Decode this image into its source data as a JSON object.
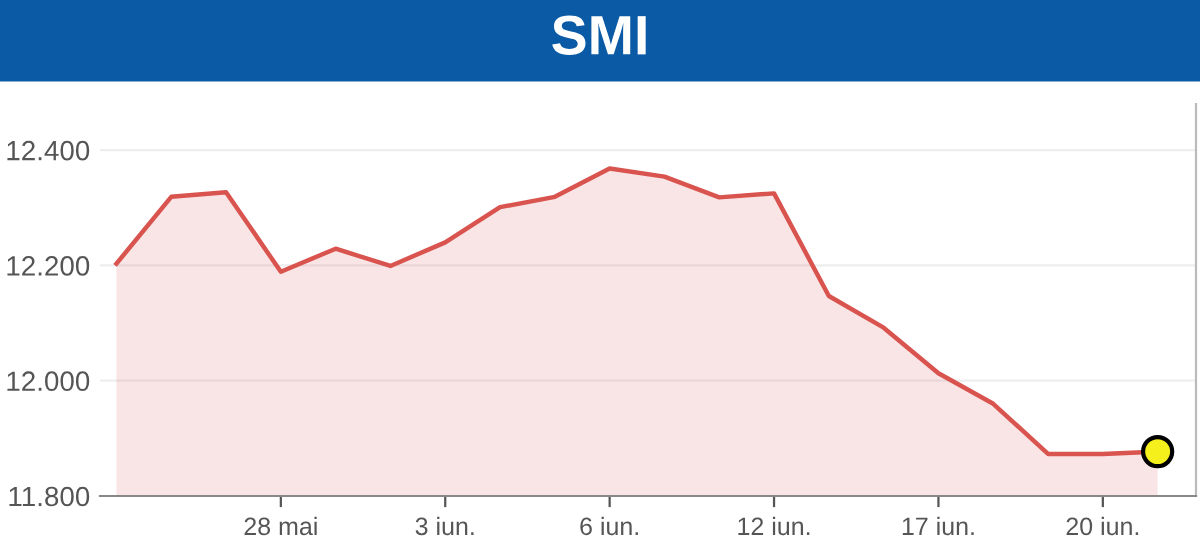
{
  "chart_data": {
    "type": "area",
    "title": "SMI",
    "categories": [
      null,
      null,
      null,
      "28 mai",
      null,
      null,
      "3 iun.",
      null,
      null,
      "6 iun.",
      null,
      null,
      "12 iun.",
      null,
      null,
      "17 iun.",
      null,
      null,
      "20 iun.",
      null
    ],
    "series": [
      {
        "color": "#d9534f",
        "values": [
          12203,
          12319,
          12327,
          12189,
          12229,
          12199,
          12240,
          12301,
          12319,
          12368,
          12354,
          12318,
          12325,
          12147,
          12092,
          12013,
          11960,
          11873,
          11873,
          11877
        ]
      },
      {
        "type": "scatter",
        "color": "#f5ef1c",
        "values": [
          null,
          null,
          null,
          null,
          null,
          null,
          null,
          null,
          null,
          null,
          null,
          null,
          null,
          null,
          null,
          null,
          null,
          null,
          null,
          11877
        ]
      }
    ],
    "ylim": [
      11800,
      12480
    ],
    "yticks": [
      {
        "value": 11800,
        "label": "11.800"
      },
      {
        "value": 12000,
        "label": "12.000"
      },
      {
        "value": 12200,
        "label": "12.200"
      },
      {
        "value": 12400,
        "label": "12.400"
      }
    ],
    "grid": "y"
  }
}
